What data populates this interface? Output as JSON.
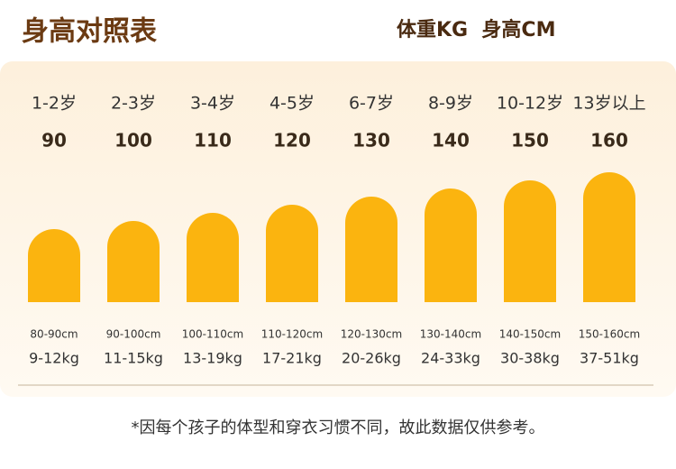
{
  "header": {
    "title": "身高对照表",
    "units": "体重KG  身高CM"
  },
  "columns": [
    {
      "age": "1-2岁",
      "size": 90,
      "height_range": "80-90cm",
      "weight": "9-12kg"
    },
    {
      "age": "2-3岁",
      "size": 100,
      "height_range": "90-100cm",
      "weight": "11-15kg"
    },
    {
      "age": "3-4岁",
      "size": 110,
      "height_range": "100-110cm",
      "weight": "13-19kg"
    },
    {
      "age": "4-5岁",
      "size": 120,
      "height_range": "110-120cm",
      "weight": "17-21kg"
    },
    {
      "age": "6-7岁",
      "size": 130,
      "height_range": "120-130cm",
      "weight": "20-26kg"
    },
    {
      "age": "8-9岁",
      "size": 140,
      "height_range": "130-140cm",
      "weight": "24-33kg"
    },
    {
      "age": "10-12岁",
      "size": 150,
      "height_range": "140-150cm",
      "weight": "30-38kg"
    },
    {
      "age": "13岁以上",
      "size": 160,
      "height_range": "150-160cm",
      "weight": "37-51kg"
    }
  ],
  "footnote": "*因每个孩子的体型和穿衣习惯不同，故此数据仅供参考。"
}
